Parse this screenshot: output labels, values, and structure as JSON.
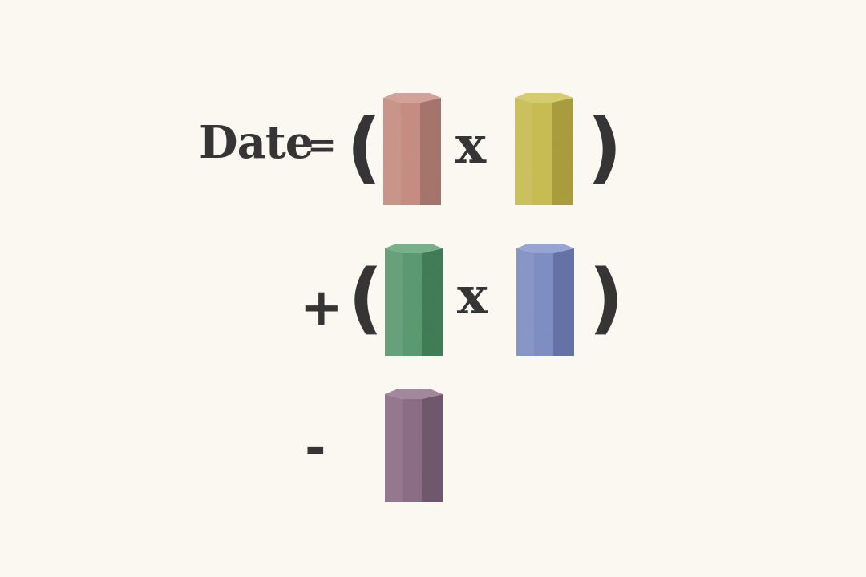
{
  "equation": {
    "label": "Date",
    "equals": "=",
    "open_paren": "(",
    "close_paren": ")",
    "times": "x",
    "plus": "+",
    "minus": "-"
  },
  "blocks": {
    "block_1": {
      "color": "#c98f84",
      "shade": "#a8776e",
      "top": "#d4a59c"
    },
    "block_2": {
      "color": "#cbbf55",
      "shade": "#ab9f3e",
      "top": "#d9cf72"
    },
    "block_3": {
      "color": "#5c9c73",
      "shade": "#427e58",
      "top": "#7ab38e"
    },
    "block_4": {
      "color": "#8090c6",
      "shade": "#6674a8",
      "top": "#9aa8d6"
    },
    "block_5": {
      "color": "#8e7088",
      "shade": "#725a6e",
      "top": "#a68aa0"
    }
  }
}
